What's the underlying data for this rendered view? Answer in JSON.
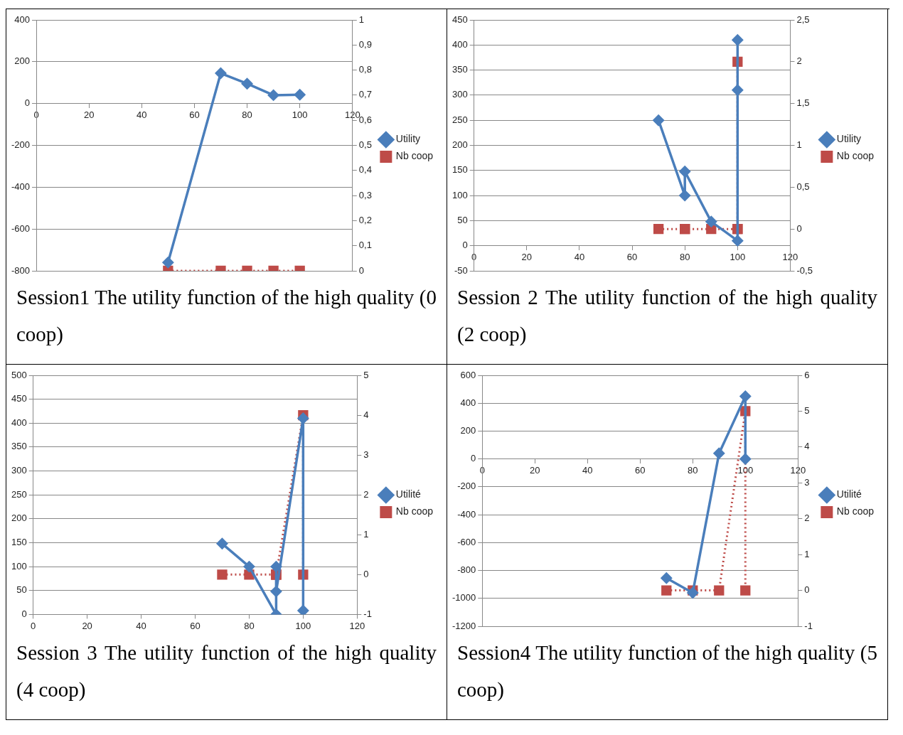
{
  "chart_data": [
    {
      "type": "line",
      "legend": "right",
      "grid": "y",
      "xlim": [
        0,
        120
      ],
      "xticks": [
        0,
        20,
        40,
        60,
        80,
        100,
        120
      ],
      "ylim": [
        -800,
        400
      ],
      "yticks": [
        -800,
        -600,
        -400,
        -200,
        0,
        200,
        400
      ],
      "y2lim": [
        0,
        1
      ],
      "y2ticks": [
        0,
        {
          "value": 0.1,
          "label": "0,1"
        },
        {
          "value": 0.2,
          "label": "0,2"
        },
        {
          "value": 0.3,
          "label": "0,3"
        },
        {
          "value": 0.4,
          "label": "0,4"
        },
        {
          "value": 0.5,
          "label": "0,5"
        },
        {
          "value": 0.6,
          "label": "0,6"
        },
        {
          "value": 0.7,
          "label": "0,7"
        },
        {
          "value": 0.8,
          "label": "0,8"
        },
        {
          "value": 0.9,
          "label": "0,9"
        },
        1
      ],
      "series": [
        {
          "name": "Utility",
          "color": "#4a7ebb",
          "marker": "diamond",
          "line_style": "solid",
          "x": [
            50,
            70,
            80,
            90,
            100
          ],
          "values": [
            -760,
            145,
            95,
            40,
            42
          ]
        },
        {
          "name": "Nb coop",
          "color": "#be4b48",
          "marker": "square",
          "line_style": "dotted",
          "axis": "y2",
          "x": [
            50,
            70,
            80,
            90,
            100
          ],
          "values": [
            0,
            0,
            0,
            0,
            0
          ]
        }
      ],
      "annotations": [
        "Session1 The utility function of the high quality (0 coop)"
      ]
    },
    {
      "type": "line",
      "legend": "right",
      "grid": "y",
      "xlim": [
        0,
        120
      ],
      "xticks": [
        0,
        20,
        40,
        60,
        80,
        100,
        120
      ],
      "ylim": [
        -50,
        450
      ],
      "yticks": [
        -50,
        0,
        50,
        100,
        150,
        200,
        250,
        300,
        350,
        400,
        450
      ],
      "y2lim": [
        -0.5,
        2.5
      ],
      "y2ticks": [
        {
          "value": -0.5,
          "label": "-0,5"
        },
        0,
        {
          "value": 0.5,
          "label": "0,5"
        },
        1,
        {
          "value": 1.5,
          "label": "1,5"
        },
        2,
        {
          "value": 2.5,
          "label": "2,5"
        }
      ],
      "series": [
        {
          "name": "Utility",
          "color": "#4a7ebb",
          "marker": "diamond",
          "line_style": "solid",
          "x": [
            70,
            80,
            80,
            90,
            100,
            100,
            100
          ],
          "values": [
            250,
            100,
            148,
            48,
            10,
            410,
            310
          ]
        },
        {
          "name": "Nb coop",
          "color": "#be4b48",
          "marker": "square",
          "line_style": "dotted",
          "axis": "y2",
          "x": [
            70,
            80,
            80,
            90,
            100,
            100,
            100
          ],
          "values": [
            0,
            0,
            0,
            0,
            0,
            2,
            0
          ]
        }
      ],
      "annotations": [
        "Session 2 The utility function of the high quality (2 coop)"
      ]
    },
    {
      "type": "line",
      "legend": "right",
      "grid": "y",
      "xlim": [
        0,
        120
      ],
      "xticks": [
        0,
        20,
        40,
        60,
        80,
        100,
        120
      ],
      "ylim": [
        0,
        500
      ],
      "yticks": [
        0,
        50,
        100,
        150,
        200,
        250,
        300,
        350,
        400,
        450,
        500
      ],
      "y2lim": [
        -1,
        5
      ],
      "y2ticks": [
        -1,
        0,
        1,
        2,
        3,
        4,
        5
      ],
      "series": [
        {
          "name": "Utilité",
          "color": "#4a7ebb",
          "marker": "diamond",
          "line_style": "solid",
          "x": [
            70,
            80,
            90,
            90,
            90,
            100,
            100
          ],
          "values": [
            148,
            100,
            0,
            100,
            48,
            410,
            8
          ]
        },
        {
          "name": "Nb coop",
          "color": "#be4b48",
          "marker": "square",
          "line_style": "dotted",
          "axis": "y2",
          "x": [
            70,
            80,
            90,
            90,
            90,
            100,
            100
          ],
          "values": [
            0,
            0,
            0,
            0,
            0,
            4,
            0
          ]
        }
      ],
      "annotations": [
        "Session 3 The utility function of the high quality (4 coop)"
      ]
    },
    {
      "type": "line",
      "legend": "right",
      "grid": "y",
      "xlim": [
        0,
        120
      ],
      "xticks": [
        0,
        20,
        40,
        60,
        80,
        100,
        120
      ],
      "ylim": [
        -1200,
        600
      ],
      "yticks": [
        -1200,
        -1000,
        -800,
        -600,
        -400,
        -200,
        0,
        200,
        400,
        600
      ],
      "y2lim": [
        -1,
        6
      ],
      "y2ticks": [
        -1,
        0,
        1,
        2,
        3,
        4,
        5,
        6
      ],
      "series": [
        {
          "name": "Utilité",
          "color": "#4a7ebb",
          "marker": "diamond",
          "line_style": "solid",
          "x": [
            70,
            80,
            90,
            100,
            100
          ],
          "values": [
            -855,
            -960,
            40,
            450,
            0
          ]
        },
        {
          "name": "Nb coop",
          "color": "#be4b48",
          "marker": "square",
          "line_style": "dotted",
          "axis": "y2",
          "x": [
            70,
            80,
            90,
            100,
            100
          ],
          "values": [
            0,
            0,
            0,
            5,
            0
          ]
        }
      ],
      "annotations": [
        "Session4 The utility function of the high quality (5 coop)"
      ]
    }
  ]
}
